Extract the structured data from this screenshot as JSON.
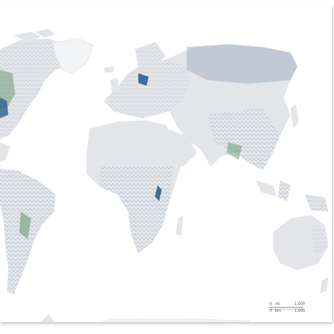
{
  "map": {
    "land_color": "#e6e6e8",
    "river_color": "#4f7fa6",
    "lake_color": "#2f5f8f",
    "wetland_color": "#6f9a7a",
    "ocean_color": "#ffffff"
  },
  "scale_bar": {
    "miles": {
      "zero": "0",
      "unit": "mi",
      "max": "1,000"
    },
    "km": {
      "zero": "0",
      "unit": "km",
      "max": "1,000"
    }
  }
}
